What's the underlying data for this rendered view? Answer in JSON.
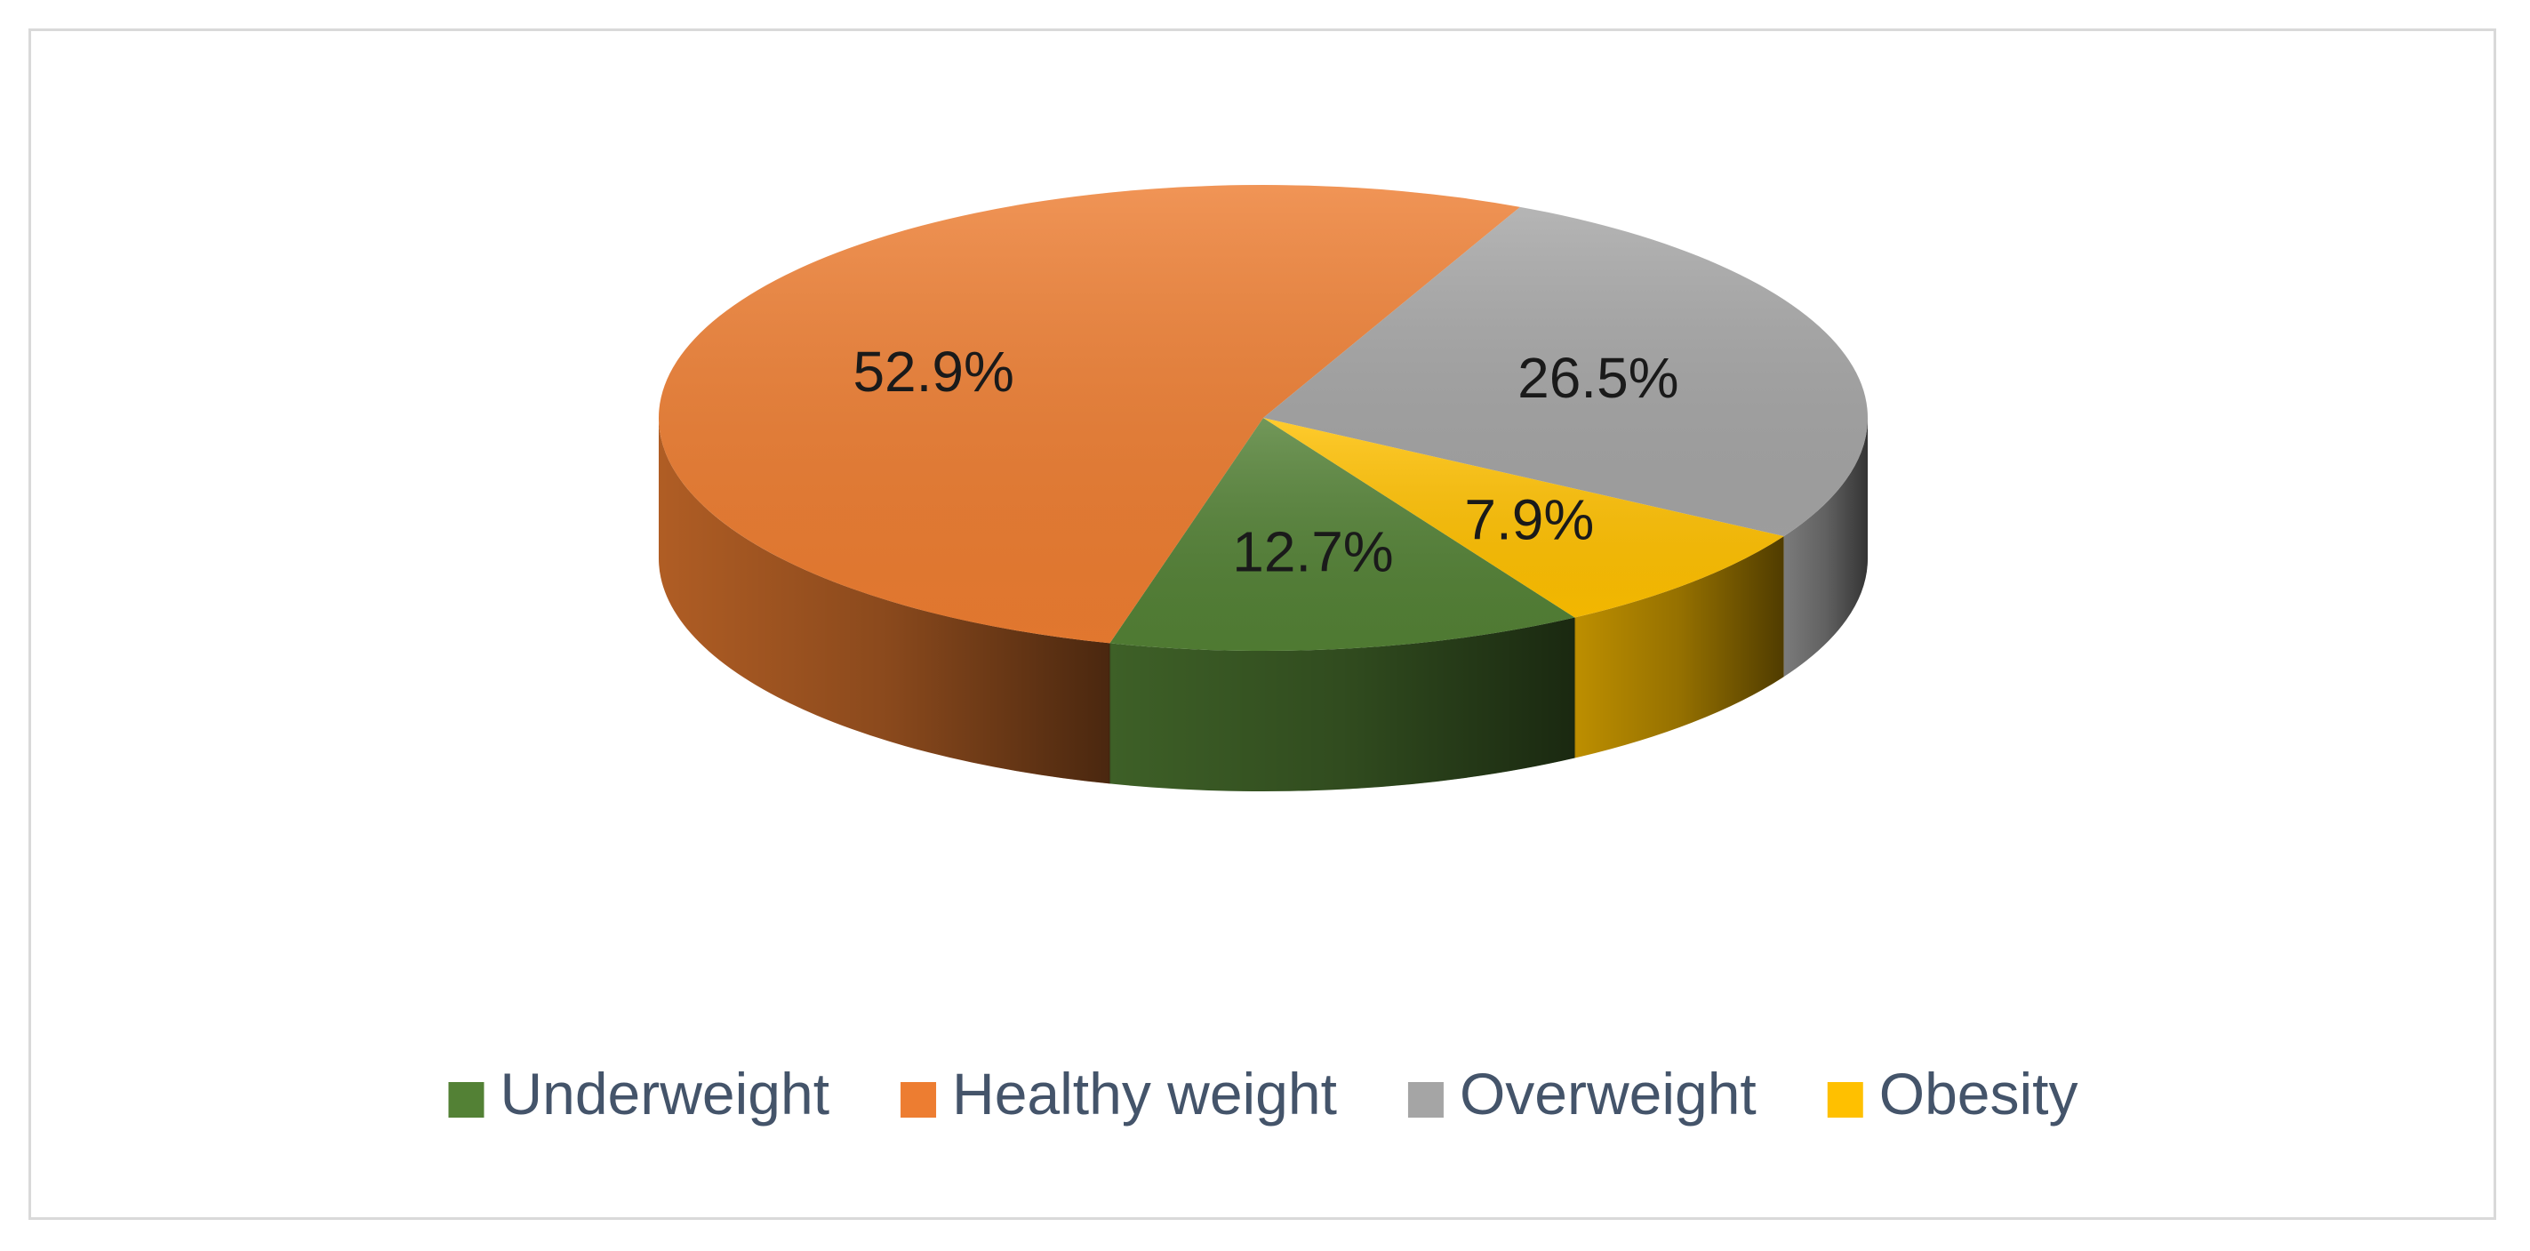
{
  "chart_data": {
    "type": "pie",
    "title": "",
    "categories": [
      "Underweight",
      "Healthy weight",
      "Overweight",
      "Obesity"
    ],
    "values": [
      12.7,
      52.9,
      26.5,
      7.9
    ],
    "labels": [
      "12.7%",
      "52.9%",
      "26.5%",
      "7.9%"
    ],
    "colors": [
      "#538135",
      "#ED7D31",
      "#A5A5A5",
      "#FFC000"
    ],
    "style": "3d",
    "legend_position": "bottom"
  }
}
